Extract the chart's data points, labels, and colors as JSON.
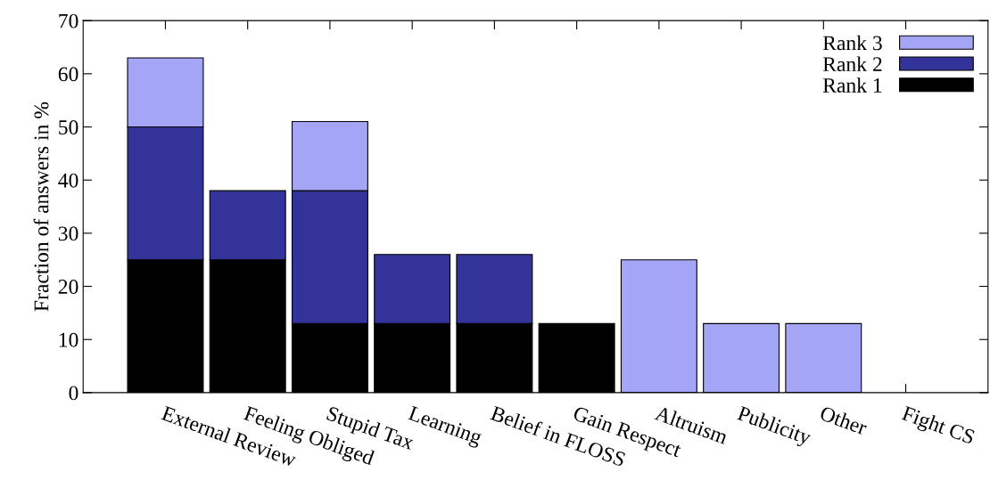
{
  "chart_data": {
    "type": "bar",
    "stacked": true,
    "ylabel": "Fraction of answers in %",
    "categories": [
      "External Review",
      "Feeling Obliged",
      "Stupid Tax",
      "Learning",
      "Belief in FLOSS",
      "Gain Respect",
      "Altruism",
      "Publicity",
      "Other",
      "Fight CS"
    ],
    "series": [
      {
        "name": "Rank 1",
        "color": "#000000",
        "values": [
          25,
          25,
          13,
          13,
          13,
          13,
          0,
          0,
          0,
          0
        ]
      },
      {
        "name": "Rank 2",
        "color": "#333399",
        "values": [
          25,
          13,
          25,
          13,
          13,
          0,
          0,
          0,
          0,
          0
        ]
      },
      {
        "name": "Rank 3",
        "color": "#a5a5f5",
        "values": [
          13,
          0,
          13,
          0,
          0,
          0,
          25,
          13,
          13,
          0
        ]
      }
    ],
    "ylim": [
      0,
      70
    ],
    "yticks": [
      0,
      10,
      20,
      30,
      40,
      50,
      60,
      70
    ],
    "legend": "top right"
  }
}
